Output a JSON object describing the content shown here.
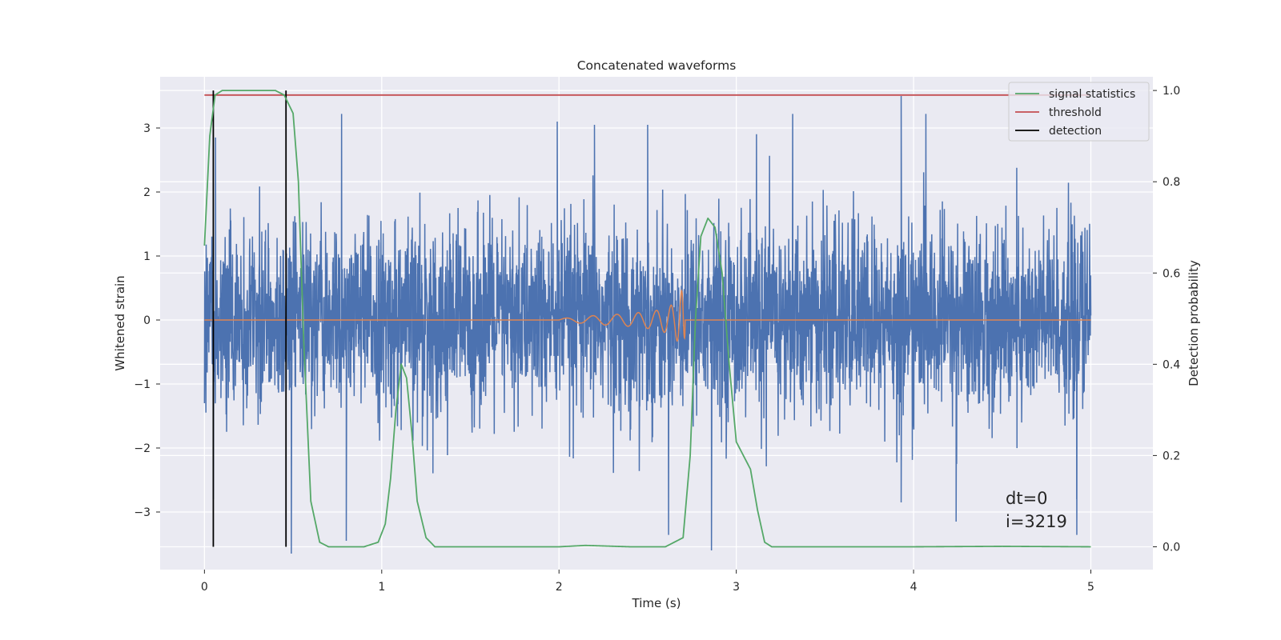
{
  "chart_data": {
    "type": "line",
    "title": "Concatenated waveforms",
    "xlabel": "Time (s)",
    "ylabel": "Whitened strain",
    "y2label": "Detection probability",
    "xlim": [
      -0.25,
      5.35
    ],
    "ylim": [
      -3.9,
      3.8
    ],
    "y2lim": [
      -0.05,
      1.03
    ],
    "x_ticks": [
      0,
      1,
      2,
      3,
      4,
      5
    ],
    "y_ticks": [
      -3,
      -2,
      -1,
      0,
      1,
      2,
      3
    ],
    "y2_ticks": [
      0.0,
      0.2,
      0.4,
      0.6,
      0.8,
      1.0
    ],
    "x_tick_labels": [
      "0",
      "1",
      "2",
      "3",
      "4",
      "5"
    ],
    "y_tick_labels": [
      "−3",
      "−2",
      "−1",
      "0",
      "1",
      "2",
      "3"
    ],
    "y2_tick_labels": [
      "0.0",
      "0.2",
      "0.4",
      "0.6",
      "0.8",
      "1.0"
    ],
    "grid": true,
    "legend_position": "top-right",
    "legend": [
      "signal statistics",
      "threshold",
      "detection"
    ],
    "series": [
      {
        "role": "whitened-strain-noise",
        "color": "#4c72b0",
        "axis": "left",
        "x_range": [
          0,
          5
        ],
        "typical_envelope": [
          -1.6,
          1.6
        ],
        "extreme_range": [
          -3.65,
          3.5
        ],
        "notable_spikes": [
          [
            0.05,
            -2.8
          ],
          [
            0.49,
            -3.65
          ],
          [
            0.8,
            -3.45
          ],
          [
            1.99,
            3.1
          ],
          [
            2.2,
            3.05
          ],
          [
            2.5,
            3.05
          ],
          [
            2.86,
            -3.6
          ],
          [
            3.93,
            3.5
          ],
          [
            3.93,
            -2.85
          ],
          [
            4.24,
            -3.15
          ],
          [
            4.92,
            -2.8
          ]
        ]
      },
      {
        "role": "injected-chirp",
        "color": "#dd8452",
        "axis": "left",
        "x": [
          0,
          2.0,
          2.2,
          2.4,
          2.55,
          2.65,
          2.7,
          2.72,
          5.0
        ],
        "amplitude_envelope": [
          0,
          0.02,
          0.07,
          0.1,
          0.15,
          0.25,
          0.5,
          0,
          0
        ]
      },
      {
        "name": "signal statistics",
        "color": "#55a868",
        "axis": "right",
        "x": [
          0.0,
          0.03,
          0.06,
          0.1,
          0.2,
          0.3,
          0.4,
          0.45,
          0.5,
          0.53,
          0.56,
          0.6,
          0.65,
          0.7,
          0.8,
          0.9,
          0.98,
          1.02,
          1.05,
          1.08,
          1.11,
          1.14,
          1.17,
          1.2,
          1.25,
          1.3,
          1.5,
          2.0,
          2.15,
          2.4,
          2.6,
          2.7,
          2.74,
          2.77,
          2.8,
          2.84,
          2.88,
          2.92,
          2.96,
          3.0,
          3.04,
          3.08,
          3.12,
          3.16,
          3.2,
          3.5,
          4.0,
          4.5,
          5.0
        ],
        "values": [
          0.66,
          0.9,
          0.99,
          1.0,
          1.0,
          1.0,
          1.0,
          0.99,
          0.95,
          0.8,
          0.45,
          0.1,
          0.01,
          0.0,
          0.0,
          0.0,
          0.01,
          0.05,
          0.15,
          0.3,
          0.4,
          0.37,
          0.25,
          0.1,
          0.02,
          0.0,
          0.0,
          0.0,
          0.003,
          0.0,
          0.0,
          0.02,
          0.2,
          0.5,
          0.68,
          0.72,
          0.7,
          0.6,
          0.4,
          0.23,
          0.2,
          0.17,
          0.08,
          0.01,
          0.0,
          0.0,
          0.0,
          0.001,
          0.0
        ]
      },
      {
        "name": "threshold",
        "color": "#c44e52",
        "axis": "right",
        "x": [
          0,
          5
        ],
        "values": [
          0.99,
          0.99
        ]
      },
      {
        "name": "detection",
        "color": "#000000",
        "axis": "right",
        "type": "vlines",
        "x": [
          0.05,
          0.46
        ],
        "ymin": 0.0,
        "ymax": 1.0
      }
    ],
    "annotations": [
      "dt=0",
      "i=3219"
    ]
  }
}
